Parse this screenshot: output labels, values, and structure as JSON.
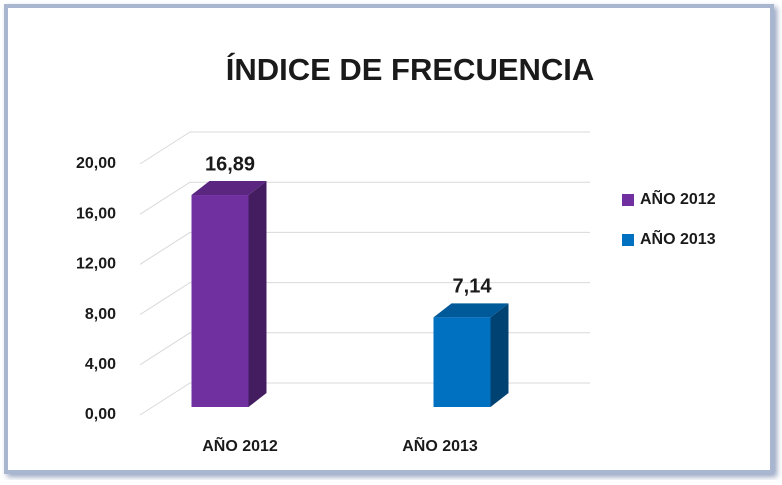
{
  "chart_data": {
    "type": "bar",
    "title": "ÍNDICE DE FRECUENCIA",
    "categories": [
      "AÑO 2012",
      "AÑO 2013"
    ],
    "series": [
      {
        "name": "AÑO 2012",
        "color": "#7030a0",
        "values": [
          16.89,
          null
        ],
        "value_labels": [
          "16,89",
          null
        ]
      },
      {
        "name": "AÑO 2013",
        "color": "#0070c0",
        "values": [
          null,
          7.14
        ],
        "value_labels": [
          null,
          "7,14"
        ]
      }
    ],
    "ylim": [
      0,
      20
    ],
    "yticks": [
      {
        "value": 0,
        "label": "0,00"
      },
      {
        "value": 4,
        "label": "4,00"
      },
      {
        "value": 8,
        "label": "8,00"
      },
      {
        "value": 12,
        "label": "12,00"
      },
      {
        "value": 16,
        "label": "16,00"
      },
      {
        "value": 20,
        "label": "20,00"
      }
    ],
    "grid": true,
    "legend": "right"
  }
}
